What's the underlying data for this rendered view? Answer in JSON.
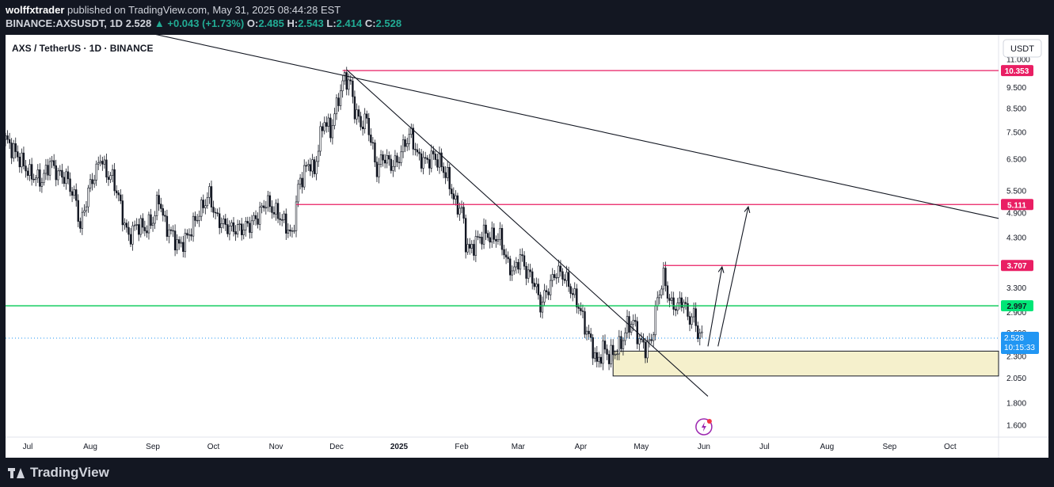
{
  "header": {
    "publisher": "wolffxtrader",
    "published_text": "published on TradingView.com, May 31, 2025 08:44:28 EST",
    "symbol_line": "BINANCE:AXSUSDT, 1D",
    "last_price": "2.528",
    "change": "+0.043 (+1.73%)",
    "open_label": "O:",
    "open": "2.485",
    "high_label": "H:",
    "high": "2.543",
    "low_label": "L:",
    "low": "2.414",
    "close_label": "C:",
    "close": "2.528"
  },
  "chart_title": "AXS / TetherUS · 1D · BINANCE",
  "footer": {
    "brand": "TradingView"
  },
  "chart_data": {
    "type": "candlestick",
    "currency_label": "USDT",
    "y_scale": "log",
    "ylim": [
      1.5,
      12.5
    ],
    "y_ticks": [
      "11.000",
      "9.500",
      "8.500",
      "7.500",
      "6.500",
      "5.500",
      "4.900",
      "4.300",
      "3.700",
      "3.300",
      "2.900",
      "2.600",
      "2.300",
      "2.050",
      "1.800",
      "1.600"
    ],
    "x_ticks": [
      {
        "label": "Jul",
        "x": "2024-07-01"
      },
      {
        "label": "Aug",
        "x": "2024-08-01"
      },
      {
        "label": "Sep",
        "x": "2024-09-01"
      },
      {
        "label": "Oct",
        "x": "2024-10-01"
      },
      {
        "label": "Nov",
        "x": "2024-11-01"
      },
      {
        "label": "Dec",
        "x": "2024-12-01"
      },
      {
        "label": "2025",
        "x": "2025-01-01",
        "bold": true
      },
      {
        "label": "Feb",
        "x": "2025-02-01"
      },
      {
        "label": "Mar",
        "x": "2025-03-01"
      },
      {
        "label": "Apr",
        "x": "2025-04-01"
      },
      {
        "label": "May",
        "x": "2025-05-01"
      },
      {
        "label": "Jun",
        "x": "2025-06-01"
      },
      {
        "label": "Jul",
        "x": "2025-07-01"
      },
      {
        "label": "Aug",
        "x": "2025-08-01"
      },
      {
        "label": "Sep",
        "x": "2025-09-01"
      },
      {
        "label": "Oct",
        "x": "2025-10-01"
      }
    ],
    "xlim": [
      "2024-06-20",
      "2025-10-25"
    ],
    "price_series": [
      [
        "2024-06-20",
        7.2
      ],
      [
        "2024-06-26",
        6.6
      ],
      [
        "2024-07-02",
        6.0
      ],
      [
        "2024-07-08",
        5.8
      ],
      [
        "2024-07-12",
        6.4
      ],
      [
        "2024-07-16",
        6.0
      ],
      [
        "2024-07-20",
        5.9
      ],
      [
        "2024-07-25",
        5.2
      ],
      [
        "2024-07-27",
        4.5
      ],
      [
        "2024-07-29",
        5.0
      ],
      [
        "2024-08-01",
        5.7
      ],
      [
        "2024-08-04",
        6.1
      ],
      [
        "2024-08-06",
        6.6
      ],
      [
        "2024-08-09",
        6.0
      ],
      [
        "2024-08-12",
        5.9
      ],
      [
        "2024-08-15",
        5.3
      ],
      [
        "2024-08-18",
        4.6
      ],
      [
        "2024-08-20",
        4.3
      ],
      [
        "2024-08-24",
        4.6
      ],
      [
        "2024-08-28",
        4.5
      ],
      [
        "2024-09-01",
        4.7
      ],
      [
        "2024-09-04",
        5.3
      ],
      [
        "2024-09-07",
        4.6
      ],
      [
        "2024-09-10",
        4.4
      ],
      [
        "2024-09-14",
        4.1
      ],
      [
        "2024-09-18",
        4.3
      ],
      [
        "2024-09-22",
        4.7
      ],
      [
        "2024-09-26",
        5.1
      ],
      [
        "2024-09-29",
        5.4
      ],
      [
        "2024-10-02",
        4.8
      ],
      [
        "2024-10-06",
        4.6
      ],
      [
        "2024-10-10",
        4.5
      ],
      [
        "2024-10-15",
        4.5
      ],
      [
        "2024-10-19",
        4.6
      ],
      [
        "2024-10-23",
        4.8
      ],
      [
        "2024-10-27",
        5.2
      ],
      [
        "2024-10-30",
        5.0
      ],
      [
        "2024-11-03",
        4.8
      ],
      [
        "2024-11-07",
        4.5
      ],
      [
        "2024-11-09",
        4.3
      ],
      [
        "2024-11-12",
        5.6
      ],
      [
        "2024-11-15",
        6.1
      ],
      [
        "2024-11-18",
        6.4
      ],
      [
        "2024-11-20",
        6.0
      ],
      [
        "2024-11-22",
        7.0
      ],
      [
        "2024-11-25",
        8.0
      ],
      [
        "2024-11-28",
        7.5
      ],
      [
        "2024-12-02",
        9.0
      ],
      [
        "2024-12-05",
        10.0
      ],
      [
        "2024-12-08",
        9.6
      ],
      [
        "2024-12-10",
        8.4
      ],
      [
        "2024-12-13",
        7.8
      ],
      [
        "2024-12-16",
        8.0
      ],
      [
        "2024-12-19",
        6.8
      ],
      [
        "2024-12-21",
        6.1
      ],
      [
        "2024-12-24",
        6.6
      ],
      [
        "2024-12-28",
        6.3
      ],
      [
        "2024-12-31",
        6.4
      ],
      [
        "2025-01-04",
        7.1
      ],
      [
        "2025-01-07",
        7.4
      ],
      [
        "2025-01-10",
        6.6
      ],
      [
        "2025-01-14",
        6.4
      ],
      [
        "2025-01-18",
        6.6
      ],
      [
        "2025-01-21",
        6.4
      ],
      [
        "2025-01-25",
        5.9
      ],
      [
        "2025-01-29",
        5.1
      ],
      [
        "2025-02-01",
        5.0
      ],
      [
        "2025-02-03",
        4.2
      ],
      [
        "2025-02-05",
        4.0
      ],
      [
        "2025-02-08",
        4.2
      ],
      [
        "2025-02-12",
        4.4
      ],
      [
        "2025-02-16",
        4.3
      ],
      [
        "2025-02-20",
        4.3
      ],
      [
        "2025-02-24",
        3.7
      ],
      [
        "2025-02-27",
        3.6
      ],
      [
        "2025-03-02",
        3.9
      ],
      [
        "2025-03-05",
        3.6
      ],
      [
        "2025-03-09",
        3.4
      ],
      [
        "2025-03-12",
        3.0
      ],
      [
        "2025-03-16",
        3.3
      ],
      [
        "2025-03-20",
        3.6
      ],
      [
        "2025-03-24",
        3.5
      ],
      [
        "2025-03-28",
        3.2
      ],
      [
        "2025-03-31",
        3.0
      ],
      [
        "2025-04-03",
        2.7
      ],
      [
        "2025-04-07",
        2.4
      ],
      [
        "2025-04-09",
        2.2
      ],
      [
        "2025-04-12",
        2.4
      ],
      [
        "2025-04-15",
        2.3
      ],
      [
        "2025-04-18",
        2.35
      ],
      [
        "2025-04-21",
        2.45
      ],
      [
        "2025-04-24",
        2.7
      ],
      [
        "2025-04-27",
        2.75
      ],
      [
        "2025-04-30",
        2.5
      ],
      [
        "2025-05-03",
        2.4
      ],
      [
        "2025-05-06",
        2.5
      ],
      [
        "2025-05-09",
        3.1
      ],
      [
        "2025-05-12",
        3.5
      ],
      [
        "2025-05-14",
        3.2
      ],
      [
        "2025-05-16",
        3.0
      ],
      [
        "2025-05-19",
        3.0
      ],
      [
        "2025-05-22",
        3.1
      ],
      [
        "2025-05-24",
        2.8
      ],
      [
        "2025-05-27",
        2.85
      ],
      [
        "2025-05-29",
        2.6
      ],
      [
        "2025-05-31",
        2.528
      ]
    ],
    "horizontal_lines": [
      {
        "label": "10.353",
        "value": 10.353,
        "color": "#e91e63",
        "from": "2024-12-04"
      },
      {
        "label": "5.111",
        "value": 5.111,
        "color": "#e91e63",
        "from": "2024-11-11"
      },
      {
        "label": "3.707",
        "value": 3.707,
        "color": "#e91e63",
        "from": "2025-05-12"
      },
      {
        "label": "2.997",
        "value": 2.997,
        "color": "#00c853",
        "from": "2024-06-20"
      }
    ],
    "current_price": {
      "label": "2.528",
      "value": 2.528,
      "countdown": "10:15:33",
      "color": "#2196f3"
    },
    "zone": {
      "from": "2025-04-17",
      "to": "2025-10-25",
      "low": 2.07,
      "high": 2.36,
      "color": "#f5f0cc"
    },
    "trendlines": [
      {
        "x1": "2024-07-29",
        "y1": 13.6,
        "x2": "2025-10-25",
        "y2": 4.75
      },
      {
        "x1": "2024-12-06",
        "y1": 10.4,
        "x2": "2025-06-03",
        "y2": 1.86
      }
    ],
    "arrows": [
      {
        "x1": "2025-06-03",
        "y1": 2.42,
        "x2": "2025-06-10",
        "y2": 3.68
      },
      {
        "x1": "2025-06-08",
        "y1": 2.42,
        "x2": "2025-06-23",
        "y2": 5.05
      }
    ],
    "event_badge_at": "2025-06-01"
  }
}
